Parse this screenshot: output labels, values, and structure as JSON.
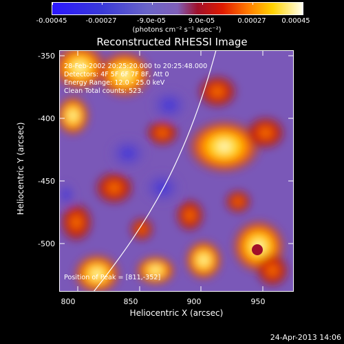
{
  "colorbar": {
    "tick_labels": [
      "-0.00045",
      "-0.00027",
      "-9.0e-05",
      "9.0e-05",
      "0.00027",
      "0.00045"
    ],
    "unit_label": "(photons cm⁻² s⁻¹ asec⁻²)",
    "colors": [
      "#2b17ff",
      "#6a64c8",
      "#7f5fb8",
      "#a0102a",
      "#ff7a00",
      "#fffff0"
    ]
  },
  "plot": {
    "title": "Reconstructed RHESSI Image",
    "xlabel": "Heliocentric X (arcsec)",
    "ylabel": "Heliocentric Y (arcsec)",
    "x_ticks": [
      "800",
      "850",
      "900",
      "950"
    ],
    "y_ticks": [
      "-350",
      "-400",
      "-450",
      "-500"
    ],
    "xlim": [
      785,
      975
    ],
    "ylim": [
      -538,
      -345
    ],
    "info_lines": [
      "28-Feb-2002 20:25:20.000 to 20:25:48.000",
      "Detectors: 4F 5F 6F 7F 8F, Att 0",
      "Energy Range: 12.0 - 25.0 keV",
      "Clean    Total counts: 523."
    ],
    "peak_label": "Position of Peak = [811,-352]"
  },
  "footer": {
    "date": "24-Apr-2013 14:06"
  }
}
